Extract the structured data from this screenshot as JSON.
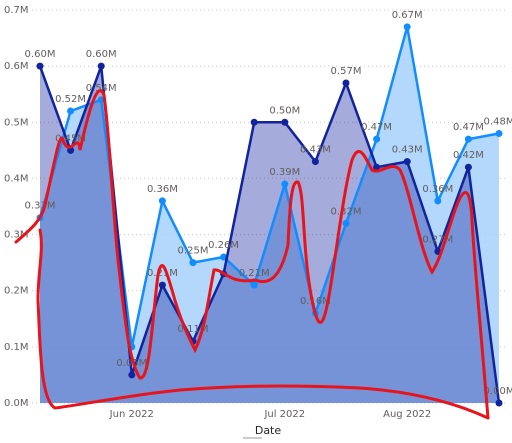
{
  "chart_data": {
    "type": "area",
    "x_label": "Date",
    "categories": [
      null,
      null,
      null,
      "Jun 2022",
      null,
      null,
      null,
      null,
      "Jul 2022",
      null,
      null,
      null,
      "Aug 2022",
      null,
      null,
      null
    ],
    "series": [
      {
        "color": "#118dff",
        "fill": "#a6d1fa",
        "values": [
          0.33,
          0.52,
          0.54,
          0.1,
          0.36,
          0.25,
          0.26,
          0.21,
          0.39,
          0.16,
          0.32,
          0.47,
          0.67,
          0.36,
          0.47,
          0.48
        ],
        "value_labels": [
          "0.33M",
          "0.52M",
          "0.54M",
          null,
          "0.36M",
          "0.25M",
          "0.26M",
          "0.21M",
          "0.39M",
          "0.16M",
          "0.32M",
          "0.47M",
          "0.67M",
          "0.36M",
          "0.47M",
          "0.48M"
        ]
      },
      {
        "color": "#12239e",
        "fill": "#12239e",
        "values": [
          0.6,
          0.45,
          0.6,
          0.05,
          0.21,
          0.11,
          0.23,
          0.5,
          0.5,
          0.43,
          0.57,
          0.42,
          0.43,
          0.27,
          0.42,
          0.0
        ],
        "value_labels": [
          "0.60M",
          "0.45M",
          "0.60M",
          "0.05M",
          "0.21M",
          "0.11M",
          null,
          null,
          "0.50M",
          "0.43M",
          "0.57M",
          null,
          "0.43M",
          "0.27M",
          "0.42M",
          "0.00M"
        ]
      }
    ],
    "ylim": [
      0,
      0.7
    ],
    "yticks": [
      {
        "value": 0,
        "label": "0.0M"
      },
      {
        "value": 0.1,
        "label": "0.1M"
      },
      {
        "value": 0.2,
        "label": "0.2M"
      },
      {
        "value": 0.3,
        "label": "0.3M"
      },
      {
        "value": 0.4,
        "label": "0.4M"
      },
      {
        "value": 0.5,
        "label": "0.5M"
      },
      {
        "value": 0.6,
        "label": "0.6M"
      },
      {
        "value": 0.7,
        "label": "0.7M"
      }
    ],
    "grid": true
  }
}
